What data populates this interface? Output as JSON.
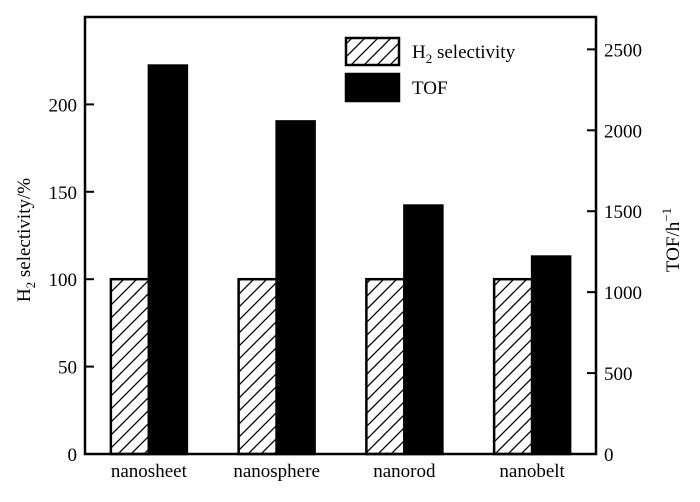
{
  "chart_data": {
    "type": "bar",
    "categories": [
      "nanosheet",
      "nanosphere",
      "nanorod",
      "nanobelt"
    ],
    "series": [
      {
        "name": "H2 selectivity",
        "name_main": "H",
        "name_sub": "2",
        "name_rest": " selectivity",
        "axis": "left",
        "pattern": "hatched",
        "values": [
          100,
          100,
          100,
          100
        ]
      },
      {
        "name": "TOF",
        "axis": "right",
        "pattern": "solid",
        "color": "#000000",
        "values": [
          2400,
          2055,
          1535,
          1220
        ]
      }
    ],
    "y_left": {
      "label_main": "H",
      "label_sub": "2",
      "label_rest": " selectivity/%",
      "lim": [
        0,
        250
      ],
      "ticks": [
        0,
        50,
        100,
        150,
        200
      ]
    },
    "y_right": {
      "label_main": "TOF/h",
      "label_sup": "−1",
      "lim": [
        0,
        2700
      ],
      "ticks": [
        0,
        500,
        1000,
        1500,
        2000,
        2500
      ]
    },
    "legend_position": "top-right",
    "grid": false
  }
}
